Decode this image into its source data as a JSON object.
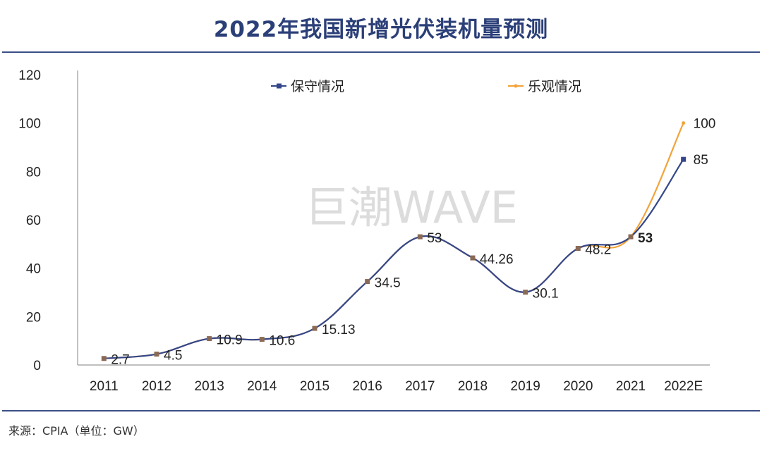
{
  "title": "2022年我国新增光伏装机量预测",
  "source": "来源：CPIA（单位：GW）",
  "watermark": "巨潮WAVE",
  "colors": {
    "conservative": "#34478a",
    "optimistic": "#f2a33a",
    "axis": "#999999",
    "title": "#2b3f78"
  },
  "chart_data": {
    "type": "line",
    "title": "2022年我国新增光伏装机量预测",
    "xlabel": "",
    "ylabel": "",
    "categories": [
      "2011",
      "2012",
      "2013",
      "2014",
      "2015",
      "2016",
      "2017",
      "2018",
      "2019",
      "2020",
      "2021",
      "2022E"
    ],
    "ylim": [
      0,
      120
    ],
    "yticks": [
      "0",
      "20",
      "40",
      "60",
      "80",
      "100",
      "120"
    ],
    "grid": false,
    "legend_position": "top",
    "series": [
      {
        "name": "保守情况",
        "values": [
          2.7,
          4.5,
          10.9,
          10.6,
          15.13,
          34.5,
          53,
          44.26,
          30.1,
          48.2,
          53,
          85
        ]
      },
      {
        "name": "乐观情况",
        "values": [
          2.7,
          4.5,
          10.9,
          10.6,
          15.13,
          34.5,
          53,
          44.26,
          30.1,
          48.2,
          53,
          100
        ]
      }
    ],
    "data_labels": [
      "2.7",
      "4.5",
      "10.9",
      "10.6",
      "15.13",
      "34.5",
      "53",
      "44.26",
      "30.1",
      "48.2",
      "53",
      "85",
      "100"
    ]
  }
}
